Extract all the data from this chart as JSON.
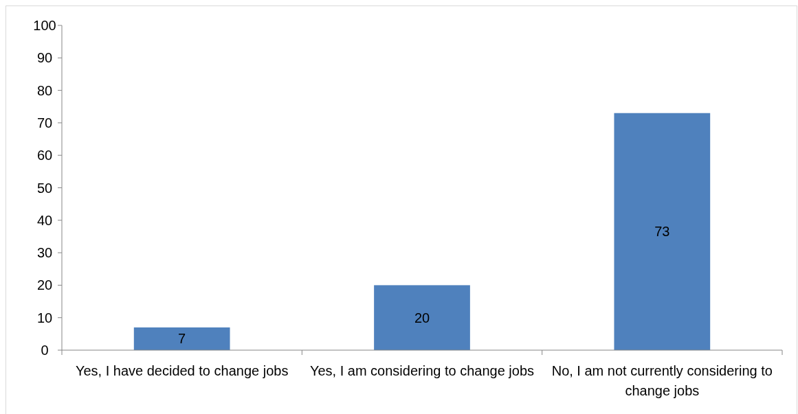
{
  "chart_data": {
    "type": "bar",
    "categories": [
      "Yes, I have decided to change jobs",
      "Yes, I am considering to change jobs",
      "No, I am not currently considering to change jobs"
    ],
    "values": [
      7,
      20,
      73
    ],
    "color": "#4f81bd",
    "ylim": [
      0,
      100
    ],
    "yticks": [
      0,
      10,
      20,
      30,
      40,
      50,
      60,
      70,
      80,
      90,
      100
    ],
    "grid": false,
    "data_labels": true
  }
}
